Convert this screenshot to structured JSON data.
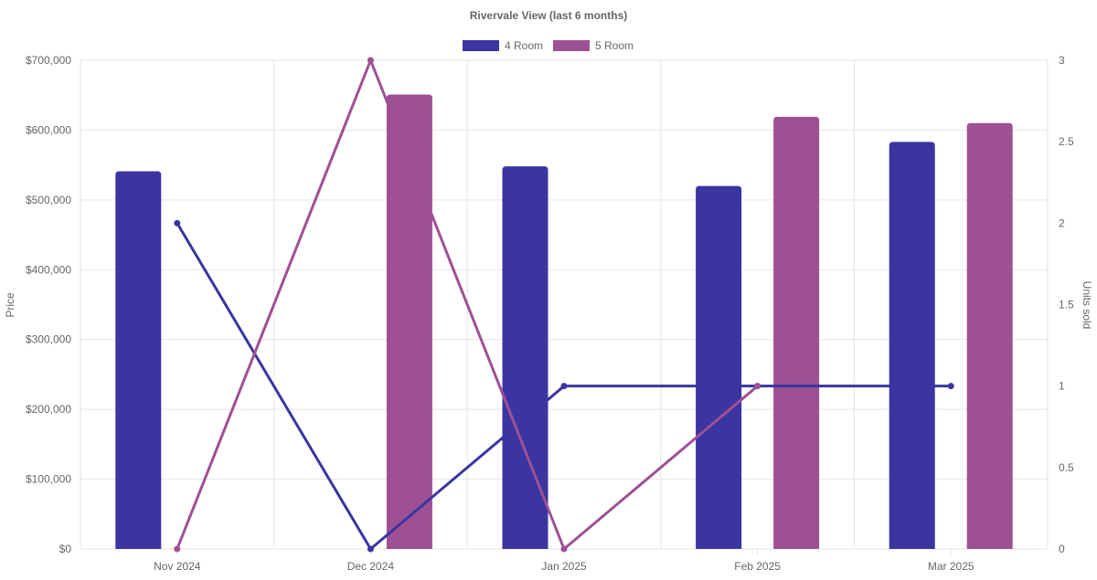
{
  "chart_data": {
    "type": "bar",
    "title": "Rivervale View (last 6 months)",
    "categories": [
      "Nov 2024",
      "Dec 2024",
      "Jan 2025",
      "Feb 2025",
      "Mar 2025"
    ],
    "y_left": {
      "label": "Price",
      "range": [
        0,
        700000
      ],
      "ticks": [
        "$0",
        "$100,000",
        "$200,000",
        "$300,000",
        "$400,000",
        "$500,000",
        "$600,000",
        "$700,000"
      ]
    },
    "y_right": {
      "label": "Units sold",
      "range": [
        0,
        3
      ],
      "ticks": [
        "0",
        "0.5",
        "1",
        "1.5",
        "2",
        "2.5",
        "3"
      ]
    },
    "bar_series": [
      {
        "name": "4 Room",
        "color": "#3a35a0",
        "values": [
          541000,
          null,
          548000,
          520000,
          583000
        ]
      },
      {
        "name": "5 Room",
        "color": "#9e5095",
        "values": [
          null,
          651000,
          null,
          619000,
          610000
        ]
      }
    ],
    "line_series": [
      {
        "name": "4 Room",
        "axis": "right",
        "color": "#3a35a0",
        "values": [
          2,
          0,
          1,
          1,
          1
        ]
      },
      {
        "name": "5 Room",
        "axis": "right",
        "color": "#9e5095",
        "values": [
          0,
          3,
          0,
          1,
          null
        ]
      }
    ],
    "grid": true,
    "legend_position": "top-center"
  }
}
